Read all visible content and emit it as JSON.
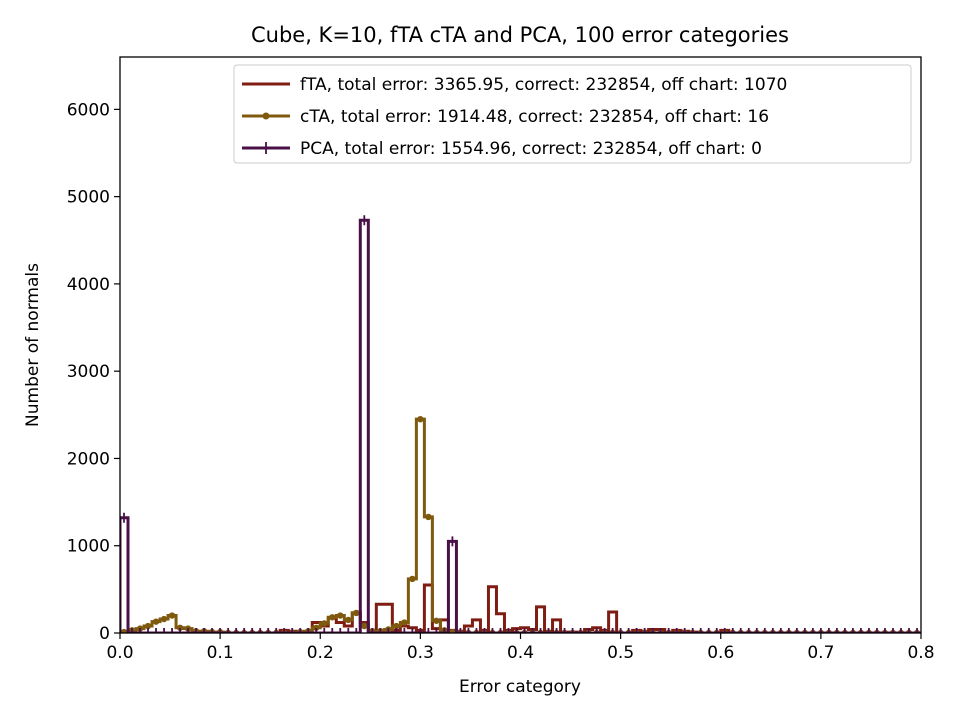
{
  "chart_data": {
    "type": "line",
    "title": "Cube, K=10, fTA cTA and PCA, 100 error categories",
    "xlabel": "Error category",
    "ylabel": "Number of normals",
    "xlim": [
      0,
      0.8
    ],
    "ylim": [
      0,
      6600
    ],
    "xticks": [
      "0.0",
      "0.1",
      "0.2",
      "0.3",
      "0.4",
      "0.5",
      "0.6",
      "0.7",
      "0.8"
    ],
    "yticks": [
      "0",
      "1000",
      "2000",
      "3000",
      "4000",
      "5000",
      "6000"
    ],
    "grid": false,
    "legend_position": "top-right",
    "bin_width": 0.008,
    "series": [
      {
        "name": "fTA, total error: 3365.95, correct: 232854, off chart: 1070",
        "color": "#7f1d12",
        "marker": "none",
        "x": [
          0.0,
          0.008,
          0.016,
          0.024,
          0.032,
          0.04,
          0.048,
          0.056,
          0.064,
          0.072,
          0.08,
          0.088,
          0.096,
          0.104,
          0.112,
          0.12,
          0.128,
          0.136,
          0.144,
          0.152,
          0.16,
          0.168,
          0.176,
          0.184,
          0.192,
          0.2,
          0.208,
          0.216,
          0.224,
          0.232,
          0.24,
          0.248,
          0.256,
          0.264,
          0.272,
          0.28,
          0.288,
          0.296,
          0.304,
          0.312,
          0.32,
          0.328,
          0.336,
          0.344,
          0.352,
          0.36,
          0.368,
          0.376,
          0.384,
          0.392,
          0.4,
          0.408,
          0.416,
          0.424,
          0.432,
          0.44,
          0.448,
          0.456,
          0.464,
          0.472,
          0.48,
          0.488,
          0.496,
          0.504,
          0.512,
          0.52,
          0.528,
          0.536,
          0.544,
          0.552,
          0.56,
          0.568,
          0.576,
          0.584,
          0.592,
          0.6,
          0.608,
          0.616,
          0.624,
          0.632,
          0.64,
          0.648,
          0.656,
          0.664,
          0.672,
          0.68,
          0.688,
          0.696,
          0.704,
          0.712,
          0.72,
          0.728,
          0.736,
          0.744,
          0.752,
          0.76,
          0.768,
          0.776,
          0.784,
          0.792
        ],
        "values": [
          0,
          0,
          0,
          0,
          0,
          0,
          0,
          0,
          0,
          0,
          0,
          0,
          0,
          0,
          0,
          0,
          0,
          0,
          0,
          0,
          30,
          20,
          10,
          0,
          120,
          80,
          170,
          120,
          80,
          230,
          120,
          30,
          330,
          330,
          30,
          80,
          60,
          30,
          550,
          50,
          150,
          30,
          20,
          80,
          150,
          30,
          530,
          220,
          30,
          50,
          60,
          40,
          300,
          20,
          150,
          10,
          10,
          0,
          40,
          60,
          30,
          240,
          0,
          0,
          30,
          20,
          40,
          40,
          0,
          30,
          20,
          10,
          0,
          0,
          0,
          30,
          0,
          0,
          0,
          0,
          0,
          0,
          0,
          0,
          0,
          0,
          0,
          0,
          0,
          0,
          0,
          0,
          0,
          0,
          0,
          0,
          0,
          0,
          0,
          0
        ]
      },
      {
        "name": "cTA, total error: 1914.48, correct: 232854, off chart: 16",
        "color": "#7f5a0e",
        "marker": "dot",
        "x": [
          0.0,
          0.008,
          0.016,
          0.024,
          0.032,
          0.04,
          0.048,
          0.056,
          0.064,
          0.072,
          0.08,
          0.088,
          0.096,
          0.104,
          0.112,
          0.12,
          0.128,
          0.136,
          0.144,
          0.152,
          0.16,
          0.168,
          0.176,
          0.184,
          0.192,
          0.2,
          0.208,
          0.216,
          0.224,
          0.232,
          0.24,
          0.248,
          0.256,
          0.264,
          0.272,
          0.28,
          0.288,
          0.296,
          0.304,
          0.312,
          0.32,
          0.328,
          0.336,
          0.344,
          0.352,
          0.36,
          0.368,
          0.376,
          0.384,
          0.392,
          0.4,
          0.408,
          0.416,
          0.424,
          0.432,
          0.44,
          0.448,
          0.456,
          0.464,
          0.472,
          0.48,
          0.488,
          0.496,
          0.504,
          0.512,
          0.52,
          0.528,
          0.536,
          0.544,
          0.552,
          0.56,
          0.568,
          0.576,
          0.584,
          0.592,
          0.6,
          0.608,
          0.616,
          0.624,
          0.632,
          0.64,
          0.648,
          0.656,
          0.664,
          0.672,
          0.68,
          0.688,
          0.696,
          0.704,
          0.712,
          0.72,
          0.728,
          0.736,
          0.744,
          0.752,
          0.76,
          0.768,
          0.776,
          0.784,
          0.792
        ],
        "values": [
          10,
          30,
          50,
          80,
          130,
          160,
          200,
          60,
          50,
          20,
          20,
          10,
          10,
          0,
          0,
          0,
          0,
          0,
          0,
          0,
          0,
          0,
          10,
          20,
          60,
          110,
          180,
          200,
          150,
          230,
          80,
          20,
          20,
          40,
          80,
          120,
          620,
          2450,
          1330,
          140,
          30,
          10,
          0,
          0,
          0,
          0,
          0,
          0,
          0,
          0,
          0,
          0,
          0,
          0,
          0,
          0,
          0,
          0,
          0,
          0,
          0,
          0,
          0,
          0,
          0,
          0,
          0,
          0,
          0,
          0,
          0,
          0,
          0,
          0,
          0,
          0,
          0,
          0,
          0,
          0,
          0,
          0,
          0,
          0,
          0,
          0,
          0,
          0,
          0,
          0,
          0,
          0,
          0,
          0,
          0,
          0,
          0,
          0,
          0,
          0
        ]
      },
      {
        "name": "PCA, total error: 1554.96, correct: 232854, off chart: 0",
        "color": "#4a1048",
        "marker": "plus",
        "x": [
          0.0,
          0.008,
          0.016,
          0.024,
          0.032,
          0.04,
          0.048,
          0.056,
          0.064,
          0.072,
          0.08,
          0.088,
          0.096,
          0.104,
          0.112,
          0.12,
          0.128,
          0.136,
          0.144,
          0.152,
          0.16,
          0.168,
          0.176,
          0.184,
          0.192,
          0.2,
          0.208,
          0.216,
          0.224,
          0.232,
          0.24,
          0.248,
          0.256,
          0.264,
          0.272,
          0.28,
          0.288,
          0.296,
          0.304,
          0.312,
          0.32,
          0.328,
          0.336,
          0.344,
          0.352,
          0.36,
          0.368,
          0.376,
          0.384,
          0.392,
          0.4,
          0.408,
          0.416,
          0.424,
          0.432,
          0.44,
          0.448,
          0.456,
          0.464,
          0.472,
          0.48,
          0.488,
          0.496,
          0.504,
          0.512,
          0.52,
          0.528,
          0.536,
          0.544,
          0.552,
          0.56,
          0.568,
          0.576,
          0.584,
          0.592,
          0.6,
          0.608,
          0.616,
          0.624,
          0.632,
          0.64,
          0.648,
          0.656,
          0.664,
          0.672,
          0.68,
          0.688,
          0.696,
          0.704,
          0.712,
          0.72,
          0.728,
          0.736,
          0.744,
          0.752,
          0.76,
          0.768,
          0.776,
          0.784,
          0.792
        ],
        "values": [
          1320,
          0,
          0,
          0,
          0,
          0,
          0,
          0,
          0,
          0,
          0,
          0,
          0,
          0,
          0,
          0,
          0,
          0,
          0,
          0,
          0,
          0,
          0,
          0,
          0,
          0,
          0,
          0,
          0,
          0,
          4730,
          0,
          0,
          0,
          0,
          0,
          0,
          0,
          0,
          0,
          0,
          1050,
          0,
          0,
          0,
          0,
          0,
          0,
          0,
          0,
          0,
          0,
          0,
          0,
          0,
          0,
          0,
          0,
          0,
          0,
          0,
          0,
          0,
          0,
          0,
          0,
          0,
          0,
          0,
          0,
          0,
          0,
          0,
          0,
          0,
          0,
          0,
          0,
          0,
          0,
          0,
          0,
          0,
          0,
          0,
          0,
          0,
          0,
          0,
          0,
          0,
          0,
          0,
          0,
          0,
          0,
          0,
          0,
          0,
          0
        ]
      }
    ]
  }
}
